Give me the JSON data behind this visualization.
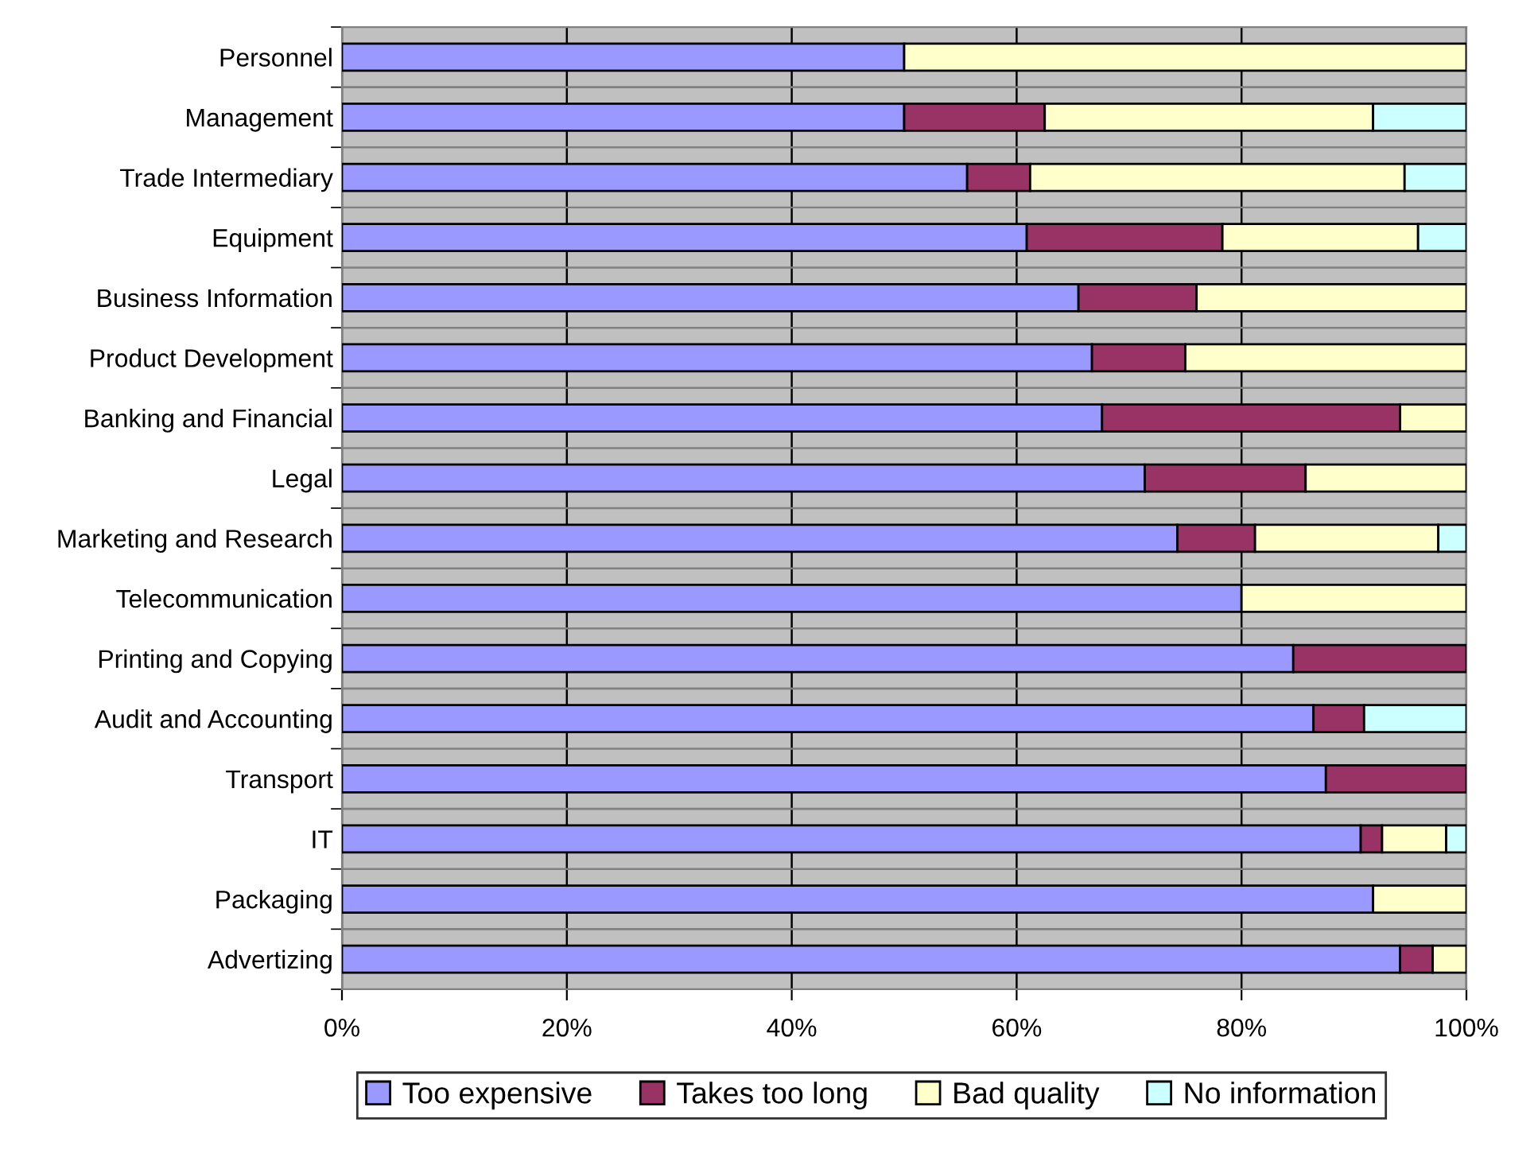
{
  "chart_data": {
    "type": "bar",
    "orientation": "horizontal",
    "stacked": true,
    "categories": [
      "Personnel",
      "Management",
      "Trade Intermediary",
      "Equipment",
      "Business Information",
      "Product Development",
      "Banking and Financial",
      "Legal",
      "Marketing and Research",
      "Telecommunication",
      "Printing and Copying",
      "Audit and Accounting",
      "Transport",
      "IT",
      "Packaging",
      "Advertizing"
    ],
    "series": [
      {
        "name": "Too expensive",
        "color": "#9999ff",
        "values": [
          50,
          50,
          55.6,
          60.9,
          65.5,
          66.7,
          67.6,
          71.4,
          74.3,
          80,
          84.6,
          86.4,
          87.5,
          90.6,
          91.7,
          94.1
        ]
      },
      {
        "name": "Takes too long",
        "color": "#993366",
        "values": [
          null,
          12.5,
          5.6,
          17.4,
          10.5,
          8.3,
          26.5,
          14.3,
          6.9,
          null,
          15.4,
          4.5,
          12.5,
          1.9,
          null,
          2.9
        ]
      },
      {
        "name": "Bad quality",
        "color": "#ffffcc",
        "values": [
          50,
          29.2,
          33.3,
          17.4,
          24.0,
          25,
          5.9,
          14.3,
          16.3,
          20,
          null,
          null,
          null,
          5.7,
          8.3,
          3.0
        ]
      },
      {
        "name": "No information",
        "color": "#ccffff",
        "values": [
          null,
          8.3,
          5.5,
          4.3,
          null,
          null,
          null,
          null,
          2.5,
          null,
          null,
          9.1,
          null,
          1.8,
          null,
          null
        ]
      }
    ],
    "xlim": [
      0,
      100
    ],
    "xticks": [
      {
        "value": 0,
        "label": "0%"
      },
      {
        "value": 20,
        "label": "20%"
      },
      {
        "value": 40,
        "label": "40%"
      },
      {
        "value": 60,
        "label": "60%"
      },
      {
        "value": 80,
        "label": "80%"
      },
      {
        "value": 100,
        "label": "100%"
      }
    ],
    "grid": true,
    "legend": "bottom"
  }
}
